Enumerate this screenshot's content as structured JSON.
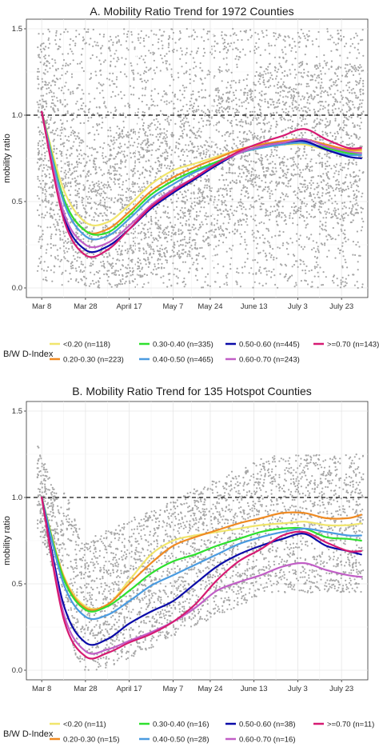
{
  "chart_data": [
    {
      "type": "scatter",
      "title": "A. Mobility Ratio Trend for 1972 Counties",
      "xlabel": "",
      "ylabel": "mobility ratio",
      "x_ticks": [
        "Mar 8",
        "Mar 28",
        "April 17",
        "May 7",
        "May 24",
        "June 13",
        "July 3",
        "July 23"
      ],
      "y_ticks": [
        "0.0",
        "0.5",
        "1.0",
        "1.5"
      ],
      "ylim": [
        0,
        1.5
      ],
      "xlim": [
        "Mar 1",
        "Aug 4"
      ],
      "reference_line": 1.0,
      "grid": true,
      "legend": {
        "title": "B/W D-Index",
        "placement": "bottom",
        "entries": [
          "<0.20 (n=118)",
          "0.20-0.30 (n=223)",
          "0.30-0.40 (n=335)",
          "0.40-0.50 (n=465)",
          "0.50-0.60 (n=445)",
          "0.60-0.70 (n=243)",
          ">=0.70 (n=143)"
        ]
      },
      "scatter_color": "#a6a6a6",
      "x": [
        "Mar 8",
        "Mar 18",
        "Mar 28",
        "Apr 7",
        "Apr 17",
        "Apr 27",
        "May 7",
        "May 17",
        "May 27",
        "Jun 6",
        "Jun 16",
        "Jun 26",
        "Jul 6",
        "Jul 16",
        "Jul 26",
        "Aug 1"
      ],
      "series": [
        {
          "color": "#f0e56c",
          "values": [
            1.02,
            0.57,
            0.38,
            0.38,
            0.48,
            0.6,
            0.68,
            0.72,
            0.76,
            0.8,
            0.83,
            0.83,
            0.83,
            0.8,
            0.79,
            0.79
          ]
        },
        {
          "color": "#ef8a22",
          "values": [
            1.02,
            0.52,
            0.33,
            0.34,
            0.44,
            0.56,
            0.64,
            0.7,
            0.75,
            0.8,
            0.83,
            0.85,
            0.86,
            0.83,
            0.8,
            0.8
          ]
        },
        {
          "color": "#2ee02e",
          "values": [
            1.02,
            0.52,
            0.33,
            0.32,
            0.42,
            0.54,
            0.62,
            0.68,
            0.73,
            0.78,
            0.81,
            0.83,
            0.84,
            0.81,
            0.78,
            0.78
          ]
        },
        {
          "color": "#4a9be0",
          "values": [
            1.02,
            0.5,
            0.3,
            0.3,
            0.4,
            0.52,
            0.6,
            0.67,
            0.72,
            0.78,
            0.81,
            0.83,
            0.84,
            0.8,
            0.77,
            0.77
          ]
        },
        {
          "color": "#0a0aa8",
          "values": [
            1.02,
            0.42,
            0.22,
            0.24,
            0.34,
            0.46,
            0.55,
            0.63,
            0.71,
            0.78,
            0.82,
            0.84,
            0.85,
            0.8,
            0.76,
            0.75
          ]
        },
        {
          "color": "#c15ec6",
          "values": [
            1.02,
            0.44,
            0.25,
            0.26,
            0.36,
            0.48,
            0.57,
            0.64,
            0.72,
            0.78,
            0.82,
            0.84,
            0.86,
            0.82,
            0.79,
            0.78
          ]
        },
        {
          "color": "#d61a72",
          "values": [
            1.02,
            0.4,
            0.19,
            0.22,
            0.34,
            0.47,
            0.56,
            0.64,
            0.72,
            0.79,
            0.84,
            0.88,
            0.92,
            0.86,
            0.81,
            0.81
          ]
        }
      ]
    },
    {
      "type": "scatter",
      "title": "B. Mobility Ratio Trend for 135 Hotspot Counties",
      "xlabel": "",
      "ylabel": "mobility ratio",
      "x_ticks": [
        "Mar 8",
        "Mar 28",
        "April 17",
        "May 7",
        "May 24",
        "June 13",
        "July 3",
        "July 23"
      ],
      "y_ticks": [
        "0.0",
        "0.5",
        "1.0",
        "1.5"
      ],
      "ylim": [
        0,
        1.5
      ],
      "xlim": [
        "Mar 1",
        "Aug 4"
      ],
      "reference_line": 1.0,
      "grid": true,
      "legend": {
        "title": "B/W D-Index",
        "placement": "bottom",
        "entries": [
          "<0.20 (n=11)",
          "0.20-0.30 (n=15)",
          "0.30-0.40 (n=16)",
          "0.40-0.50 (n=28)",
          "0.50-0.60 (n=38)",
          "0.60-0.70 (n=16)",
          ">=0.70 (n=11)"
        ]
      },
      "scatter_color": "#a6a6a6",
      "x": [
        "Mar 8",
        "Mar 18",
        "Mar 28",
        "Apr 7",
        "Apr 17",
        "Apr 27",
        "May 7",
        "May 17",
        "May 27",
        "Jun 6",
        "Jun 16",
        "Jun 26",
        "Jul 6",
        "Jul 16",
        "Jul 26",
        "Aug 1"
      ],
      "series": [
        {
          "color": "#f0e56c",
          "values": [
            1.0,
            0.55,
            0.37,
            0.38,
            0.52,
            0.67,
            0.75,
            0.78,
            0.8,
            0.82,
            0.84,
            0.85,
            0.86,
            0.84,
            0.84,
            0.85
          ]
        },
        {
          "color": "#ef8a22",
          "values": [
            1.0,
            0.54,
            0.36,
            0.38,
            0.5,
            0.62,
            0.72,
            0.77,
            0.81,
            0.85,
            0.88,
            0.91,
            0.91,
            0.88,
            0.88,
            0.9
          ]
        },
        {
          "color": "#2ee02e",
          "values": [
            1.0,
            0.53,
            0.35,
            0.37,
            0.46,
            0.56,
            0.63,
            0.67,
            0.72,
            0.76,
            0.8,
            0.82,
            0.82,
            0.77,
            0.76,
            0.75
          ]
        },
        {
          "color": "#4a9be0",
          "values": [
            1.0,
            0.5,
            0.31,
            0.32,
            0.4,
            0.49,
            0.55,
            0.61,
            0.67,
            0.73,
            0.77,
            0.8,
            0.82,
            0.8,
            0.78,
            0.78
          ]
        },
        {
          "color": "#0a0aa8",
          "values": [
            1.0,
            0.38,
            0.16,
            0.18,
            0.27,
            0.34,
            0.4,
            0.5,
            0.6,
            0.67,
            0.72,
            0.76,
            0.79,
            0.72,
            0.69,
            0.67
          ]
        },
        {
          "color": "#c15ec6",
          "values": [
            1.0,
            0.33,
            0.11,
            0.12,
            0.17,
            0.22,
            0.28,
            0.36,
            0.46,
            0.51,
            0.55,
            0.6,
            0.62,
            0.58,
            0.55,
            0.54
          ]
        },
        {
          "color": "#d61a72",
          "values": [
            1.0,
            0.3,
            0.08,
            0.1,
            0.16,
            0.21,
            0.28,
            0.38,
            0.52,
            0.63,
            0.7,
            0.78,
            0.8,
            0.74,
            0.69,
            0.69
          ]
        }
      ]
    }
  ]
}
